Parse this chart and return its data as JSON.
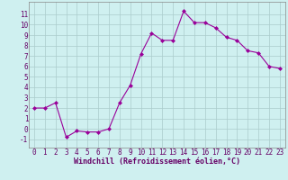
{
  "x": [
    0,
    1,
    2,
    3,
    4,
    5,
    6,
    7,
    8,
    9,
    10,
    11,
    12,
    13,
    14,
    15,
    16,
    17,
    18,
    19,
    20,
    21,
    22,
    23
  ],
  "y": [
    2,
    2,
    2.5,
    -0.8,
    -0.2,
    -0.3,
    -0.3,
    0.0,
    2.5,
    4.2,
    7.2,
    9.2,
    8.5,
    8.5,
    11.3,
    10.2,
    10.2,
    9.7,
    8.8,
    8.5,
    7.5,
    7.3,
    6.0,
    5.8
  ],
  "xlabel": "Windchill (Refroidissement éolien,°C)",
  "xlim": [
    -0.5,
    23.5
  ],
  "ylim": [
    -1.8,
    12.2
  ],
  "yticks": [
    -1,
    0,
    1,
    2,
    3,
    4,
    5,
    6,
    7,
    8,
    9,
    10,
    11
  ],
  "xticks": [
    0,
    1,
    2,
    3,
    4,
    5,
    6,
    7,
    8,
    9,
    10,
    11,
    12,
    13,
    14,
    15,
    16,
    17,
    18,
    19,
    20,
    21,
    22,
    23
  ],
  "line_color": "#990099",
  "marker": "D",
  "marker_size": 2.0,
  "bg_color": "#cff0f0",
  "grid_color": "#aacccc",
  "tick_color": "#660066",
  "label_color": "#660066",
  "font_size": 5.5,
  "xlabel_fontsize": 6.0
}
